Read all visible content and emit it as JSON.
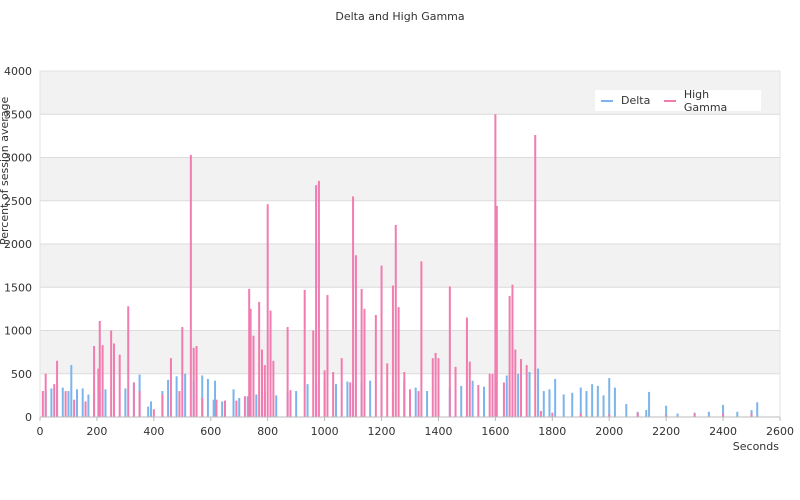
{
  "chart_data": {
    "type": "bar",
    "title": "Delta and High Gamma",
    "xlabel": "Seconds",
    "ylabel": "Percent of session average",
    "xlim": [
      0,
      2600
    ],
    "ylim": [
      0,
      4000
    ],
    "x_ticks": [
      "0",
      "200",
      "400",
      "600",
      "800",
      "1000",
      "1200",
      "1400",
      "1600",
      "1800",
      "2000",
      "2200",
      "2400",
      "2600"
    ],
    "y_ticks": [
      "0",
      "500",
      "1000",
      "1500",
      "2000",
      "2500",
      "3000",
      "3500",
      "4000"
    ],
    "grid": "horizontal, alternating bands",
    "legend_position": "top-right",
    "series": [
      {
        "name": "Delta",
        "color": "#7cb5ec",
        "points": [
          [
            20,
            300
          ],
          [
            40,
            330
          ],
          [
            60,
            280
          ],
          [
            80,
            340
          ],
          [
            100,
            300
          ],
          [
            110,
            600
          ],
          [
            130,
            320
          ],
          [
            150,
            330
          ],
          [
            170,
            260
          ],
          [
            190,
            280
          ],
          [
            210,
            300
          ],
          [
            230,
            320
          ],
          [
            260,
            290
          ],
          [
            300,
            330
          ],
          [
            330,
            400
          ],
          [
            350,
            490
          ],
          [
            380,
            120
          ],
          [
            390,
            180
          ],
          [
            430,
            300
          ],
          [
            450,
            430
          ],
          [
            480,
            470
          ],
          [
            510,
            500
          ],
          [
            540,
            420
          ],
          [
            570,
            480
          ],
          [
            590,
            440
          ],
          [
            610,
            200
          ],
          [
            615,
            420
          ],
          [
            640,
            180
          ],
          [
            680,
            320
          ],
          [
            700,
            220
          ],
          [
            730,
            240
          ],
          [
            760,
            260
          ],
          [
            790,
            300
          ],
          [
            830,
            250
          ],
          [
            870,
            280
          ],
          [
            900,
            300
          ],
          [
            940,
            380
          ],
          [
            970,
            400
          ],
          [
            1000,
            430
          ],
          [
            1040,
            380
          ],
          [
            1080,
            410
          ],
          [
            1100,
            380
          ],
          [
            1130,
            400
          ],
          [
            1160,
            420
          ],
          [
            1200,
            430
          ],
          [
            1240,
            300
          ],
          [
            1280,
            420
          ],
          [
            1320,
            340
          ],
          [
            1360,
            300
          ],
          [
            1400,
            360
          ],
          [
            1440,
            330
          ],
          [
            1480,
            360
          ],
          [
            1520,
            420
          ],
          [
            1560,
            350
          ],
          [
            1600,
            540
          ],
          [
            1640,
            480
          ],
          [
            1680,
            500
          ],
          [
            1720,
            520
          ],
          [
            1750,
            560
          ],
          [
            1770,
            300
          ],
          [
            1790,
            320
          ],
          [
            1810,
            440
          ],
          [
            1840,
            260
          ],
          [
            1870,
            280
          ],
          [
            1900,
            340
          ],
          [
            1920,
            300
          ],
          [
            1940,
            380
          ],
          [
            1960,
            360
          ],
          [
            1980,
            250
          ],
          [
            2000,
            450
          ],
          [
            2020,
            340
          ],
          [
            2060,
            150
          ],
          [
            2100,
            60
          ],
          [
            2130,
            80
          ],
          [
            2140,
            290
          ],
          [
            2200,
            130
          ],
          [
            2240,
            40
          ],
          [
            2300,
            50
          ],
          [
            2350,
            60
          ],
          [
            2400,
            140
          ],
          [
            2450,
            60
          ],
          [
            2500,
            80
          ],
          [
            2520,
            170
          ]
        ]
      },
      {
        "name": "High Gamma",
        "color": "#f17cb0",
        "points": [
          [
            10,
            300
          ],
          [
            20,
            500
          ],
          [
            50,
            380
          ],
          [
            60,
            650
          ],
          [
            90,
            300
          ],
          [
            120,
            200
          ],
          [
            160,
            180
          ],
          [
            190,
            820
          ],
          [
            205,
            560
          ],
          [
            210,
            1110
          ],
          [
            220,
            830
          ],
          [
            250,
            1000
          ],
          [
            260,
            850
          ],
          [
            280,
            720
          ],
          [
            310,
            1280
          ],
          [
            330,
            400
          ],
          [
            350,
            300
          ],
          [
            400,
            90
          ],
          [
            430,
            260
          ],
          [
            460,
            680
          ],
          [
            490,
            300
          ],
          [
            500,
            1040
          ],
          [
            530,
            3030
          ],
          [
            540,
            800
          ],
          [
            550,
            820
          ],
          [
            570,
            220
          ],
          [
            620,
            200
          ],
          [
            650,
            190
          ],
          [
            690,
            190
          ],
          [
            720,
            240
          ],
          [
            735,
            1480
          ],
          [
            740,
            1250
          ],
          [
            750,
            940
          ],
          [
            770,
            1330
          ],
          [
            780,
            780
          ],
          [
            790,
            600
          ],
          [
            800,
            2460
          ],
          [
            810,
            1230
          ],
          [
            820,
            650
          ],
          [
            870,
            1040
          ],
          [
            880,
            310
          ],
          [
            930,
            1470
          ],
          [
            960,
            1000
          ],
          [
            970,
            2680
          ],
          [
            980,
            2730
          ],
          [
            1000,
            540
          ],
          [
            1010,
            1410
          ],
          [
            1030,
            520
          ],
          [
            1060,
            680
          ],
          [
            1090,
            400
          ],
          [
            1100,
            2550
          ],
          [
            1110,
            1870
          ],
          [
            1130,
            1480
          ],
          [
            1140,
            1250
          ],
          [
            1180,
            1180
          ],
          [
            1200,
            1750
          ],
          [
            1220,
            620
          ],
          [
            1240,
            1520
          ],
          [
            1250,
            2220
          ],
          [
            1260,
            1270
          ],
          [
            1280,
            520
          ],
          [
            1300,
            320
          ],
          [
            1330,
            300
          ],
          [
            1340,
            1800
          ],
          [
            1380,
            680
          ],
          [
            1390,
            740
          ],
          [
            1400,
            680
          ],
          [
            1440,
            1510
          ],
          [
            1460,
            580
          ],
          [
            1500,
            1150
          ],
          [
            1510,
            640
          ],
          [
            1540,
            370
          ],
          [
            1580,
            500
          ],
          [
            1590,
            500
          ],
          [
            1600,
            3500
          ],
          [
            1605,
            2440
          ],
          [
            1630,
            400
          ],
          [
            1650,
            1400
          ],
          [
            1660,
            1530
          ],
          [
            1670,
            780
          ],
          [
            1690,
            670
          ],
          [
            1710,
            600
          ],
          [
            1740,
            3260
          ],
          [
            1760,
            70
          ],
          [
            1800,
            50
          ],
          [
            1900,
            40
          ],
          [
            2000,
            30
          ],
          [
            2100,
            50
          ],
          [
            2200,
            20
          ],
          [
            2300,
            40
          ],
          [
            2400,
            40
          ],
          [
            2500,
            40
          ]
        ]
      }
    ]
  }
}
